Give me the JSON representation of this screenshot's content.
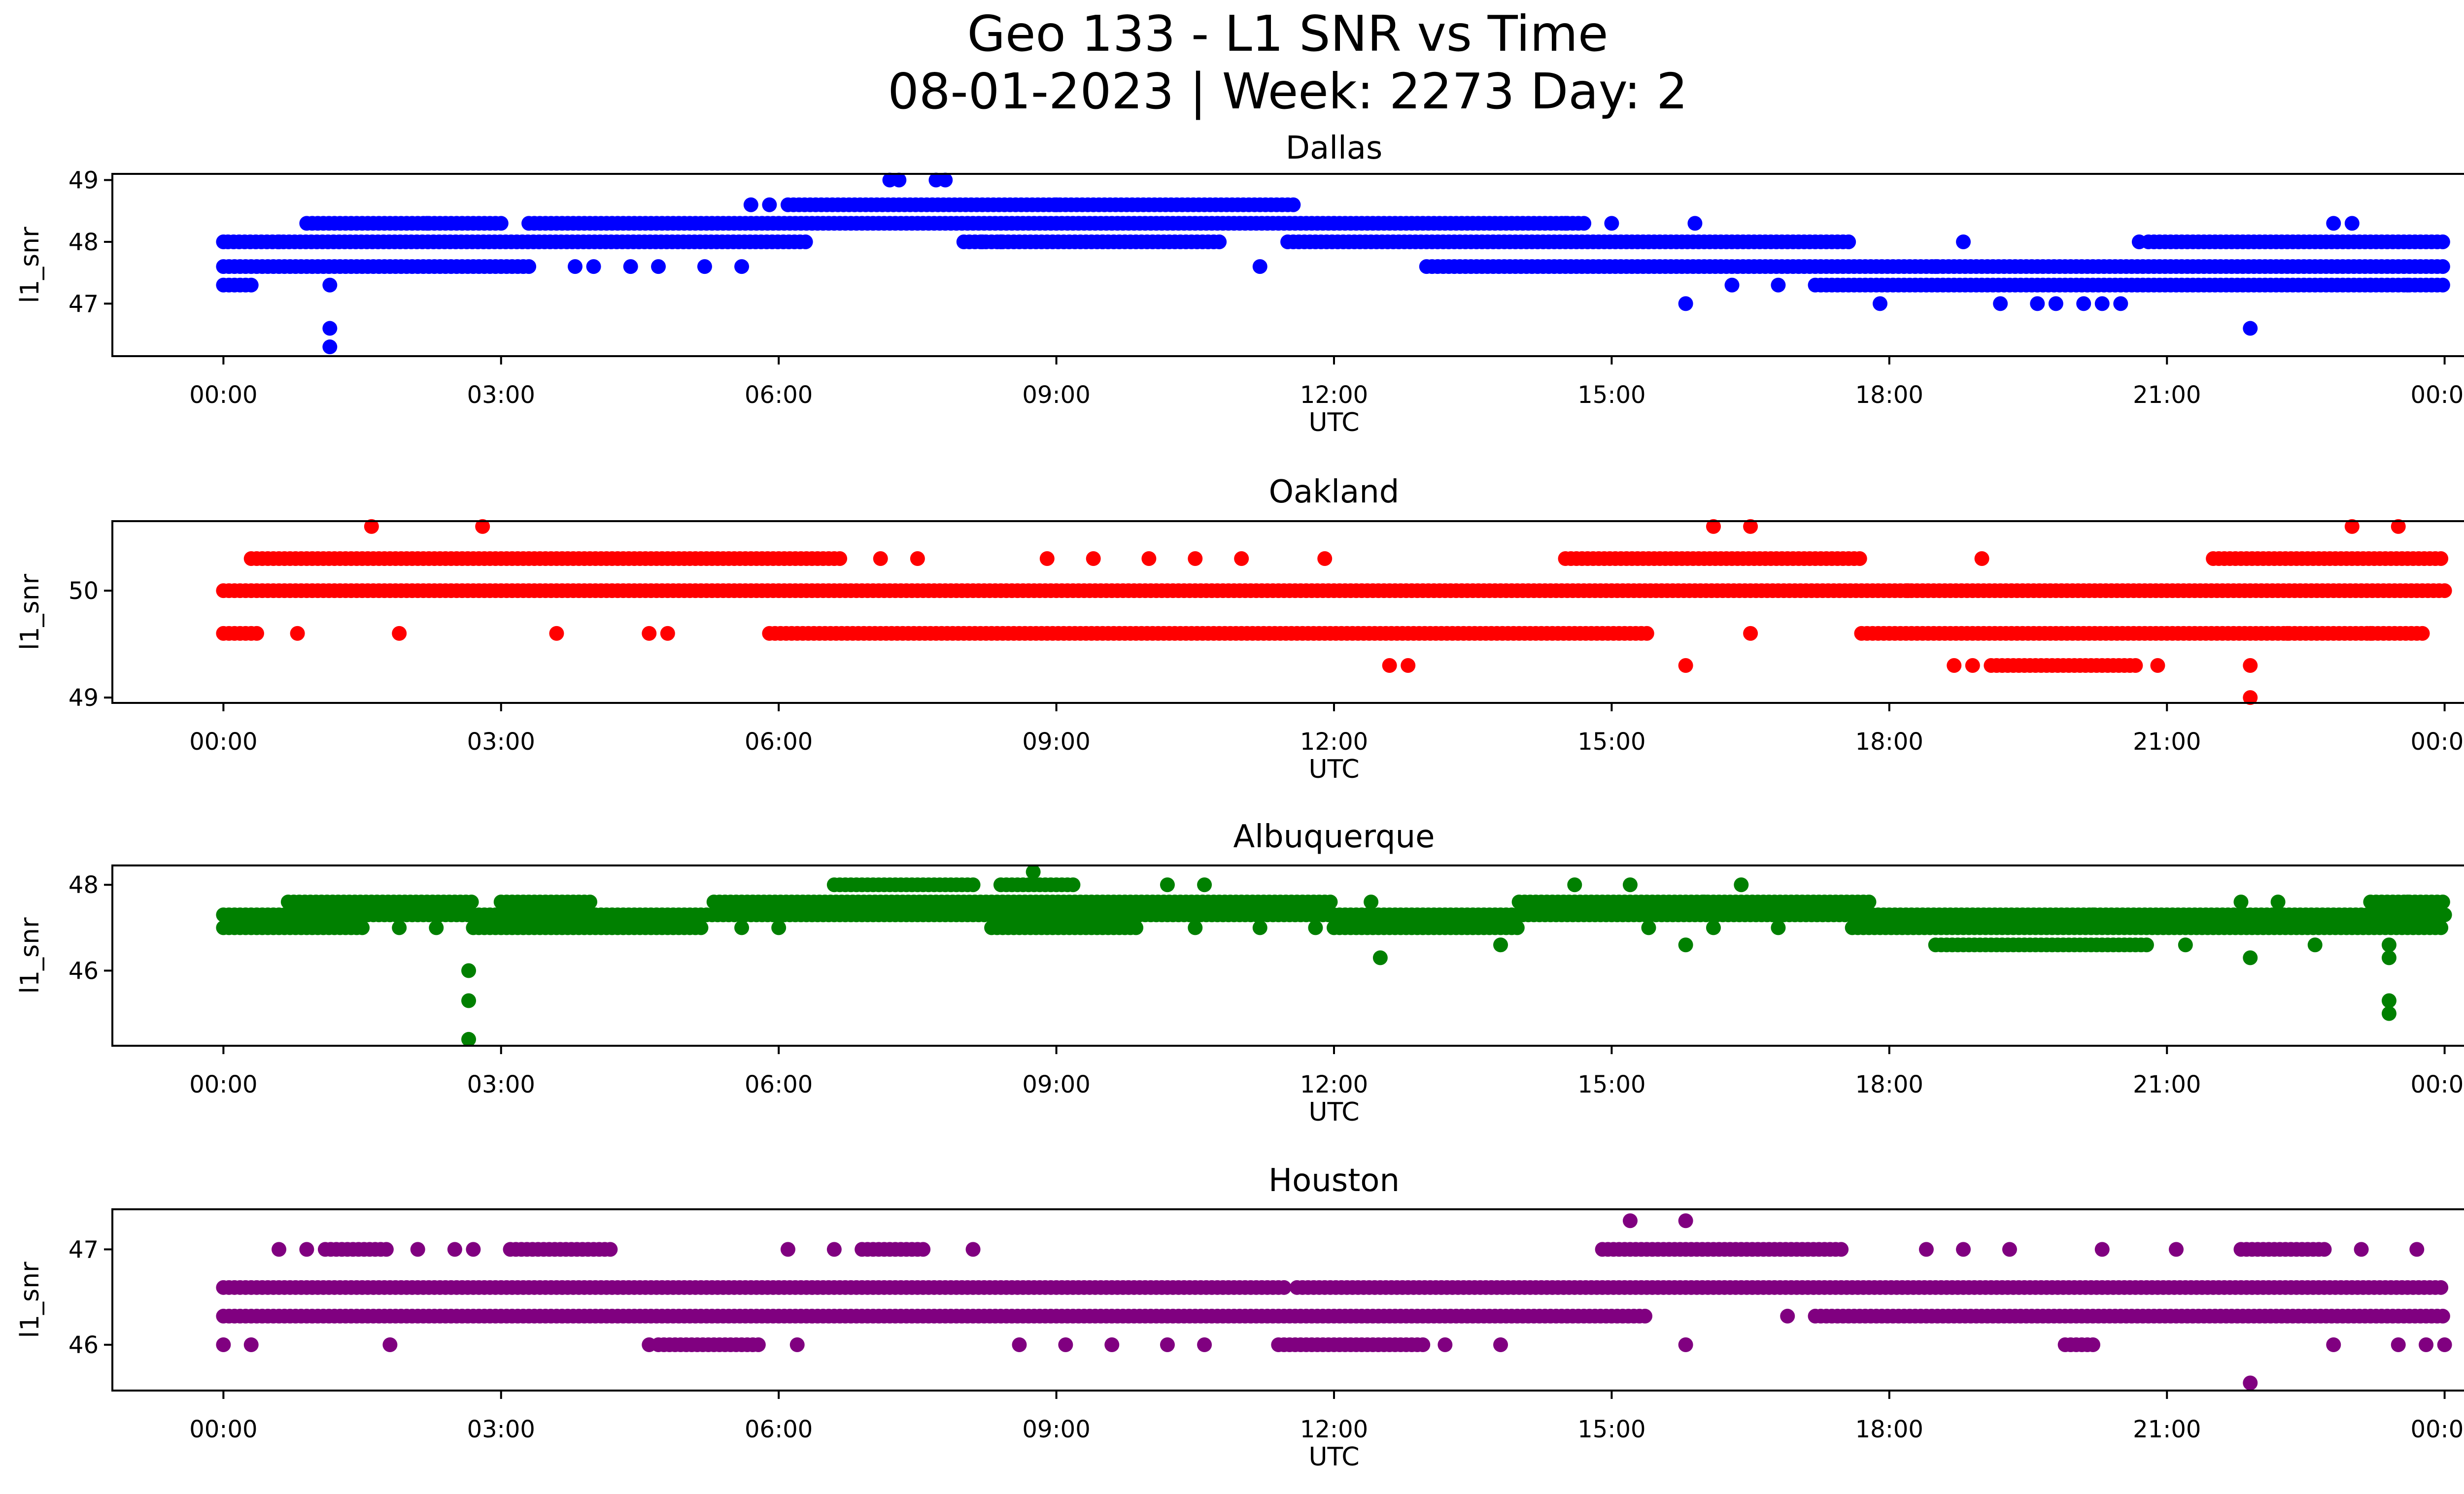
{
  "chart_data": {
    "type": "scatter",
    "title": "Geo 133 - L1 SNR vs Time",
    "subtitle": "08-01-2023 | Week: 2273 Day: 2",
    "x_tick_labels": [
      "00:00",
      "03:00",
      "06:00",
      "09:00",
      "12:00",
      "15:00",
      "18:00",
      "21:00",
      "00:00"
    ],
    "xlim_hours": [
      -1.2,
      25.2
    ],
    "panels": [
      {
        "title": "Dallas",
        "color": "#0000ff",
        "xlabel": "UTC",
        "ylabel": "l1_snr",
        "ylim": [
          46.15,
          49.1
        ],
        "yticks": [
          47,
          48,
          49
        ],
        "bands": [
          {
            "y": 47.3,
            "from": 0.0,
            "to": 0.35
          },
          {
            "y": 47.3,
            "from": 17.2,
            "to": 24.0
          },
          {
            "y": 47.6,
            "from": 0.0,
            "to": 3.3
          },
          {
            "y": 47.6,
            "from": 13.0,
            "to": 24.0
          },
          {
            "y": 48.0,
            "from": 0.05,
            "to": 6.3
          },
          {
            "y": 48.0,
            "from": 8.0,
            "to": 10.8
          },
          {
            "y": 48.0,
            "from": 11.5,
            "to": 17.6
          },
          {
            "y": 48.0,
            "from": 20.8,
            "to": 24.0
          },
          {
            "y": 48.3,
            "from": 0.9,
            "to": 3.0
          },
          {
            "y": 48.3,
            "from": 3.3,
            "to": 14.7
          },
          {
            "y": 48.6,
            "from": 6.1,
            "to": 11.6
          }
        ],
        "points": [
          [
            0.0,
            48.0
          ],
          [
            0.6,
            48.0
          ],
          [
            1.15,
            46.6
          ],
          [
            1.15,
            46.3
          ],
          [
            1.15,
            47.3
          ],
          [
            3.8,
            47.6
          ],
          [
            4.0,
            47.6
          ],
          [
            4.4,
            47.6
          ],
          [
            4.7,
            47.6
          ],
          [
            5.2,
            47.6
          ],
          [
            5.6,
            47.6
          ],
          [
            5.7,
            48.6
          ],
          [
            5.9,
            48.6
          ],
          [
            7.2,
            49.0
          ],
          [
            7.3,
            49.0
          ],
          [
            7.7,
            49.0
          ],
          [
            7.8,
            49.0
          ],
          [
            8.2,
            48.0
          ],
          [
            8.4,
            48.0
          ],
          [
            9.5,
            48.0
          ],
          [
            11.2,
            47.6
          ],
          [
            14.5,
            48.3
          ],
          [
            15.0,
            48.3
          ],
          [
            15.8,
            47.0
          ],
          [
            15.9,
            48.3
          ],
          [
            16.3,
            47.3
          ],
          [
            16.8,
            47.3
          ],
          [
            17.9,
            47.0
          ],
          [
            18.8,
            48.0
          ],
          [
            19.2,
            47.0
          ],
          [
            19.6,
            47.0
          ],
          [
            19.8,
            47.0
          ],
          [
            20.1,
            47.0
          ],
          [
            20.3,
            47.0
          ],
          [
            20.5,
            47.0
          ],
          [
            20.7,
            48.0
          ],
          [
            21.9,
            46.6
          ],
          [
            22.8,
            48.3
          ],
          [
            23.0,
            48.3
          ],
          [
            23.2,
            47.3
          ],
          [
            23.6,
            47.3
          ],
          [
            18.5,
            47.6
          ],
          [
            12.0,
            48.3
          ],
          [
            9.0,
            48.6
          ],
          [
            2.2,
            48.3
          ]
        ]
      },
      {
        "title": "Oakland",
        "color": "#ff0000",
        "xlabel": "UTC",
        "ylabel": "l1_snr",
        "ylim": [
          48.95,
          50.65
        ],
        "yticks": [
          49,
          50
        ],
        "bands": [
          {
            "y": 49.6,
            "from": 0.0,
            "to": 0.4
          },
          {
            "y": 49.6,
            "from": 5.9,
            "to": 15.4
          },
          {
            "y": 49.6,
            "from": 17.7,
            "to": 23.8
          },
          {
            "y": 50.0,
            "from": 0.0,
            "to": 24.0
          },
          {
            "y": 50.3,
            "from": 0.3,
            "to": 6.7
          },
          {
            "y": 50.3,
            "from": 14.5,
            "to": 17.7
          },
          {
            "y": 50.3,
            "from": 21.5,
            "to": 24.0
          },
          {
            "y": 49.3,
            "from": 19.1,
            "to": 20.7
          }
        ],
        "points": [
          [
            0.8,
            49.6
          ],
          [
            1.9,
            49.6
          ],
          [
            3.6,
            49.6
          ],
          [
            4.6,
            49.6
          ],
          [
            4.8,
            49.6
          ],
          [
            1.6,
            50.6
          ],
          [
            2.8,
            50.6
          ],
          [
            7.1,
            50.3
          ],
          [
            7.5,
            50.3
          ],
          [
            8.9,
            50.3
          ],
          [
            9.4,
            50.3
          ],
          [
            10.0,
            50.3
          ],
          [
            10.5,
            50.3
          ],
          [
            11.0,
            50.3
          ],
          [
            11.9,
            50.3
          ],
          [
            12.6,
            49.3
          ],
          [
            12.8,
            49.3
          ],
          [
            15.8,
            49.3
          ],
          [
            16.1,
            50.6
          ],
          [
            16.5,
            50.6
          ],
          [
            16.5,
            49.6
          ],
          [
            18.7,
            49.3
          ],
          [
            18.9,
            49.3
          ],
          [
            20.9,
            49.3
          ],
          [
            21.9,
            49.3
          ],
          [
            21.9,
            49.0
          ],
          [
            22.3,
            49.6
          ],
          [
            23.0,
            50.6
          ],
          [
            23.5,
            50.6
          ],
          [
            23.2,
            49.6
          ],
          [
            18.2,
            50.0
          ],
          [
            19.0,
            50.3
          ]
        ]
      },
      {
        "title": "Albuquerque",
        "color": "#008000",
        "xlabel": "UTC",
        "ylabel": "l1_snr",
        "ylim": [
          44.25,
          48.45
        ],
        "yticks": [
          46,
          48
        ],
        "bands": [
          {
            "y": 47.0,
            "from": 0.0,
            "to": 1.5
          },
          {
            "y": 47.0,
            "from": 2.7,
            "to": 5.2
          },
          {
            "y": 47.0,
            "from": 8.3,
            "to": 9.9
          },
          {
            "y": 47.0,
            "from": 12.0,
            "to": 14.0
          },
          {
            "y": 47.0,
            "from": 17.6,
            "to": 24.0
          },
          {
            "y": 47.3,
            "from": 0.0,
            "to": 24.0
          },
          {
            "y": 47.6,
            "from": 0.7,
            "to": 2.7
          },
          {
            "y": 47.6,
            "from": 3.0,
            "to": 4.0
          },
          {
            "y": 47.6,
            "from": 5.3,
            "to": 12.0
          },
          {
            "y": 47.6,
            "from": 14.0,
            "to": 17.8
          },
          {
            "y": 47.6,
            "from": 23.2,
            "to": 24.0
          },
          {
            "y": 48.0,
            "from": 6.6,
            "to": 8.1
          },
          {
            "y": 48.0,
            "from": 8.4,
            "to": 9.2
          },
          {
            "y": 46.6,
            "from": 18.5,
            "to": 20.8
          }
        ],
        "points": [
          [
            2.65,
            46.0
          ],
          [
            2.65,
            45.3
          ],
          [
            2.65,
            44.4
          ],
          [
            1.9,
            47.0
          ],
          [
            2.3,
            47.0
          ],
          [
            6.0,
            47.0
          ],
          [
            5.6,
            47.0
          ],
          [
            8.75,
            48.3
          ],
          [
            10.2,
            48.0
          ],
          [
            10.6,
            48.0
          ],
          [
            10.5,
            47.0
          ],
          [
            11.2,
            47.0
          ],
          [
            11.8,
            47.0
          ],
          [
            12.5,
            46.3
          ],
          [
            12.4,
            47.6
          ],
          [
            13.8,
            46.6
          ],
          [
            14.6,
            48.0
          ],
          [
            15.2,
            48.0
          ],
          [
            15.4,
            47.0
          ],
          [
            15.8,
            46.6
          ],
          [
            16.0,
            47.6
          ],
          [
            16.1,
            47.0
          ],
          [
            16.4,
            48.0
          ],
          [
            16.8,
            47.0
          ],
          [
            17.0,
            47.6
          ],
          [
            21.2,
            46.6
          ],
          [
            21.9,
            46.3
          ],
          [
            21.8,
            47.6
          ],
          [
            22.2,
            47.6
          ],
          [
            22.6,
            46.6
          ],
          [
            23.4,
            46.3
          ],
          [
            23.4,
            46.6
          ],
          [
            23.4,
            45.3
          ],
          [
            23.4,
            45.0
          ],
          [
            23.6,
            47.6
          ],
          [
            20.2,
            47.3
          ]
        ]
      },
      {
        "title": "Houston",
        "color": "#800080",
        "xlabel": "UTC",
        "ylabel": "l1_snr",
        "ylim": [
          45.52,
          47.42
        ],
        "yticks": [
          46,
          47
        ],
        "bands": [
          {
            "y": 46.0,
            "from": 4.7,
            "to": 5.8
          },
          {
            "y": 46.0,
            "from": 11.4,
            "to": 13.0
          },
          {
            "y": 46.0,
            "from": 19.9,
            "to": 20.2
          },
          {
            "y": 46.3,
            "from": 0.0,
            "to": 15.4
          },
          {
            "y": 46.3,
            "from": 17.2,
            "to": 24.0
          },
          {
            "y": 46.6,
            "from": 0.0,
            "to": 11.5
          },
          {
            "y": 46.6,
            "from": 11.6,
            "to": 24.0
          },
          {
            "y": 47.0,
            "from": 1.1,
            "to": 1.8
          },
          {
            "y": 47.0,
            "from": 3.1,
            "to": 4.2
          },
          {
            "y": 47.0,
            "from": 6.9,
            "to": 7.6
          },
          {
            "y": 47.0,
            "from": 14.9,
            "to": 17.5
          },
          {
            "y": 47.0,
            "from": 21.8,
            "to": 22.7
          }
        ],
        "points": [
          [
            0.0,
            46.0
          ],
          [
            0.3,
            46.0
          ],
          [
            0.6,
            47.0
          ],
          [
            0.9,
            47.0
          ],
          [
            1.8,
            46.0
          ],
          [
            2.1,
            47.0
          ],
          [
            2.5,
            47.0
          ],
          [
            2.7,
            47.0
          ],
          [
            4.6,
            46.0
          ],
          [
            6.1,
            47.0
          ],
          [
            6.2,
            46.0
          ],
          [
            6.6,
            47.0
          ],
          [
            8.1,
            47.0
          ],
          [
            8.6,
            46.0
          ],
          [
            9.1,
            46.0
          ],
          [
            9.6,
            46.0
          ],
          [
            10.2,
            46.0
          ],
          [
            10.6,
            46.0
          ],
          [
            13.2,
            46.0
          ],
          [
            13.8,
            46.0
          ],
          [
            15.2,
            47.3
          ],
          [
            15.8,
            47.3
          ],
          [
            15.8,
            46.0
          ],
          [
            16.9,
            46.3
          ],
          [
            18.4,
            47.0
          ],
          [
            18.8,
            47.0
          ],
          [
            19.3,
            47.0
          ],
          [
            20.3,
            47.0
          ],
          [
            21.1,
            47.0
          ],
          [
            21.9,
            45.6
          ],
          [
            22.8,
            46.0
          ],
          [
            23.1,
            47.0
          ],
          [
            23.5,
            46.0
          ],
          [
            23.7,
            47.0
          ],
          [
            23.8,
            46.0
          ],
          [
            24.0,
            46.0
          ]
        ]
      }
    ]
  }
}
